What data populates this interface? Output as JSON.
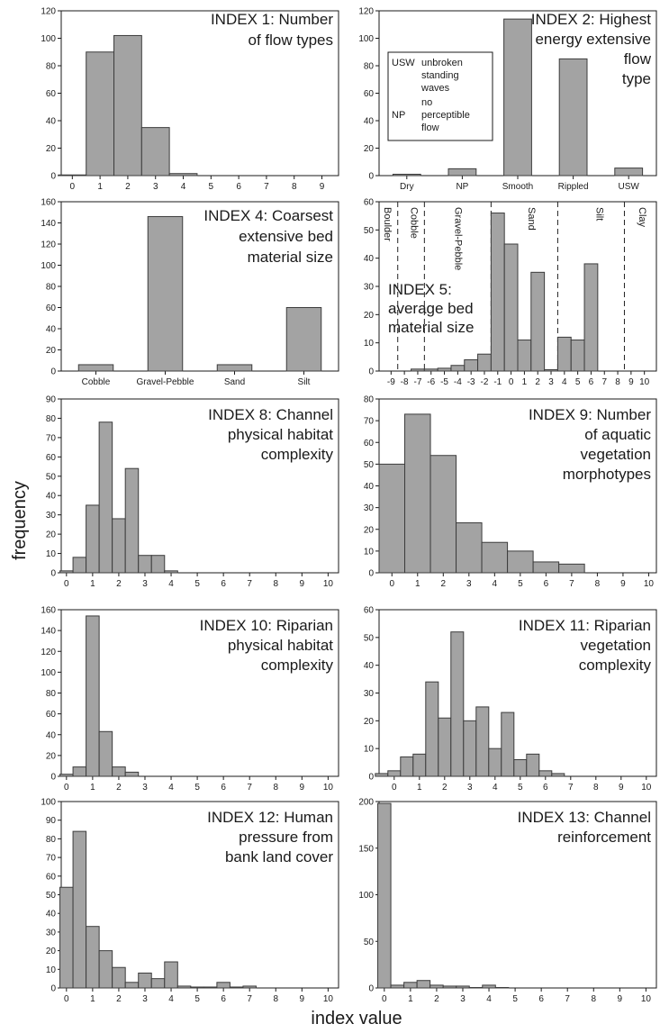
{
  "figure": {
    "y_label": "frequency",
    "x_label": "index value"
  },
  "chart_data": [
    {
      "id": "p1",
      "type": "bar",
      "title_lines": [
        "INDEX 1: Number",
        "of flow types"
      ],
      "xmode": "numeric",
      "xlim": [
        -0.4,
        9.6
      ],
      "ylim": [
        0,
        120
      ],
      "xticks": [
        0,
        1,
        2,
        3,
        4,
        5,
        6,
        7,
        8,
        9
      ],
      "yticks": [
        0,
        20,
        40,
        60,
        80,
        100,
        120
      ],
      "bar_width": 1,
      "x": [
        0,
        1,
        2,
        3,
        4
      ],
      "values": [
        0.5,
        90,
        102,
        35,
        1.5
      ]
    },
    {
      "id": "p2",
      "type": "bar",
      "title_lines": [
        "INDEX 2: Highest",
        "energy extensive",
        "flow",
        "type"
      ],
      "xmode": "categorical",
      "ylim": [
        0,
        120
      ],
      "yticks": [
        0,
        20,
        40,
        60,
        80,
        100,
        120
      ],
      "categories": [
        "Dry",
        "NP",
        "Smooth",
        "Rippled",
        "USW"
      ],
      "values": [
        1,
        5,
        114,
        85,
        5.5
      ],
      "legend_box": [
        {
          "abbr": "USW",
          "lines": [
            "unbroken",
            "standing",
            "waves"
          ]
        },
        {
          "abbr": "NP",
          "lines": [
            "no",
            "perceptible",
            "flow"
          ]
        }
      ]
    },
    {
      "id": "p4",
      "type": "bar",
      "title_lines": [
        "INDEX 4: Coarsest",
        "extensive bed",
        "material size"
      ],
      "xmode": "categorical",
      "ylim": [
        0,
        160
      ],
      "yticks": [
        0,
        20,
        40,
        60,
        80,
        100,
        120,
        140,
        160
      ],
      "categories": [
        "Cobble",
        "Gravel-Pebble",
        "Sand",
        "Silt"
      ],
      "values": [
        6,
        146,
        6,
        60
      ]
    },
    {
      "id": "p5",
      "type": "bar",
      "title_lines": [
        "INDEX 5:",
        "average bed",
        "material size"
      ],
      "xmode": "numeric",
      "xlim": [
        -9.9,
        10.9
      ],
      "ylim": [
        0,
        60
      ],
      "xticks": [
        -9,
        -8,
        -7,
        -6,
        -5,
        -4,
        -3,
        -2,
        -1,
        0,
        1,
        2,
        3,
        4,
        5,
        6,
        7,
        8,
        9,
        10
      ],
      "yticks": [
        0,
        10,
        20,
        30,
        40,
        50,
        60
      ],
      "bar_width": 1,
      "x": [
        -7,
        -6,
        -5,
        -4,
        -3,
        -2,
        -1,
        0,
        1,
        2,
        3,
        4,
        5,
        6
      ],
      "values": [
        0.7,
        0.7,
        1,
        2,
        4,
        6,
        56,
        45,
        11,
        35,
        0.5,
        12,
        11,
        38
      ],
      "zones": {
        "boundaries": [
          -8,
          -6,
          -1,
          4,
          9
        ],
        "labels": [
          {
            "text": "Boulder",
            "x": -9.5
          },
          {
            "text": "Cobble",
            "x": -7.5
          },
          {
            "text": "Gravel-Pebble",
            "x": -4.2
          },
          {
            "text": "Sand",
            "x": 1.3
          },
          {
            "text": "Silt",
            "x": 6.4
          },
          {
            "text": "Clay",
            "x": 9.6
          }
        ]
      }
    },
    {
      "id": "p8",
      "type": "bar",
      "title_lines": [
        "INDEX 8: Channel",
        "physical habitat",
        "complexity"
      ],
      "xmode": "numeric",
      "xlim": [
        -0.2,
        10.4
      ],
      "ylim": [
        0,
        90
      ],
      "xticks": [
        0,
        1,
        2,
        3,
        4,
        5,
        6,
        7,
        8,
        9,
        10
      ],
      "yticks": [
        0,
        10,
        20,
        30,
        40,
        50,
        60,
        70,
        80,
        90
      ],
      "bar_width": 0.5,
      "x": [
        0,
        0.5,
        1,
        1.5,
        2,
        2.5,
        3,
        3.5,
        4
      ],
      "values": [
        1,
        8,
        35,
        78,
        28,
        54,
        9,
        9,
        1
      ]
    },
    {
      "id": "p9",
      "type": "bar",
      "title_lines": [
        "INDEX 9: Number",
        "of aquatic",
        "vegetation",
        "morphotypes"
      ],
      "xmode": "numeric",
      "xlim": [
        -0.5,
        10.3
      ],
      "ylim": [
        0,
        80
      ],
      "xticks": [
        0,
        1,
        2,
        3,
        4,
        5,
        6,
        7,
        8,
        9,
        10
      ],
      "yticks": [
        0,
        10,
        20,
        30,
        40,
        50,
        60,
        70,
        80
      ],
      "bar_width": 1,
      "x": [
        0,
        1,
        2,
        3,
        4,
        5,
        6,
        7
      ],
      "values": [
        50,
        73,
        54,
        23,
        14,
        10,
        5,
        4
      ]
    },
    {
      "id": "p10",
      "type": "bar",
      "title_lines": [
        "INDEX 10: Riparian",
        "physical habitat",
        "complexity"
      ],
      "xmode": "numeric",
      "xlim": [
        -0.2,
        10.4
      ],
      "ylim": [
        0,
        160
      ],
      "xticks": [
        0,
        1,
        2,
        3,
        4,
        5,
        6,
        7,
        8,
        9,
        10
      ],
      "yticks": [
        0,
        20,
        40,
        60,
        80,
        100,
        120,
        140,
        160
      ],
      "bar_width": 0.5,
      "x": [
        0,
        0.5,
        1,
        1.5,
        2,
        2.5
      ],
      "values": [
        2,
        9,
        154,
        43,
        9,
        4
      ]
    },
    {
      "id": "p11",
      "type": "bar",
      "title_lines": [
        "INDEX 11: Riparian",
        "vegetation",
        "complexity"
      ],
      "xmode": "numeric",
      "xlim": [
        -0.6,
        10.4
      ],
      "ylim": [
        0,
        60
      ],
      "xticks": [
        0,
        1,
        2,
        3,
        4,
        5,
        6,
        7,
        8,
        9,
        10
      ],
      "yticks": [
        0,
        10,
        20,
        30,
        40,
        50,
        60
      ],
      "bar_width": 0.5,
      "x": [
        -0.5,
        0,
        0.5,
        1,
        1.5,
        2,
        2.5,
        3,
        3.5,
        4,
        4.5,
        5,
        5.5,
        6,
        6.5
      ],
      "values": [
        1,
        2,
        7,
        8,
        34,
        21,
        52,
        20,
        25,
        10,
        23,
        6,
        8,
        2,
        1
      ]
    },
    {
      "id": "p12",
      "type": "bar",
      "title_lines": [
        "INDEX 12: Human",
        "pressure from",
        "bank land cover"
      ],
      "xmode": "numeric",
      "xlim": [
        -0.2,
        10.4
      ],
      "ylim": [
        0,
        100
      ],
      "xticks": [
        0,
        1,
        2,
        3,
        4,
        5,
        6,
        7,
        8,
        9,
        10
      ],
      "yticks": [
        0,
        10,
        20,
        30,
        40,
        50,
        60,
        70,
        80,
        90,
        100
      ],
      "bar_width": 0.5,
      "x": [
        0,
        0.5,
        1,
        1.5,
        2,
        2.5,
        3,
        3.5,
        4,
        4.5,
        5,
        5.5,
        6,
        6.5,
        7
      ],
      "values": [
        54,
        84,
        33,
        20,
        11,
        3,
        8,
        5,
        14,
        1,
        0.5,
        0.5,
        3,
        0.5,
        1
      ]
    },
    {
      "id": "p13",
      "type": "bar",
      "title_lines": [
        "INDEX 13: Channel",
        "reinforcement"
      ],
      "xmode": "numeric",
      "xlim": [
        -0.2,
        10.4
      ],
      "ylim": [
        0,
        200
      ],
      "xticks": [
        0,
        1,
        2,
        3,
        4,
        5,
        6,
        7,
        8,
        9,
        10
      ],
      "yticks": [
        0,
        50,
        100,
        150,
        200
      ],
      "bar_width": 0.5,
      "x": [
        0,
        0.5,
        1,
        1.5,
        2,
        2.5,
        3,
        3.5,
        4,
        4.5
      ],
      "values": [
        198,
        3,
        6,
        8,
        3,
        2,
        2,
        0.5,
        3,
        0.5
      ]
    }
  ]
}
